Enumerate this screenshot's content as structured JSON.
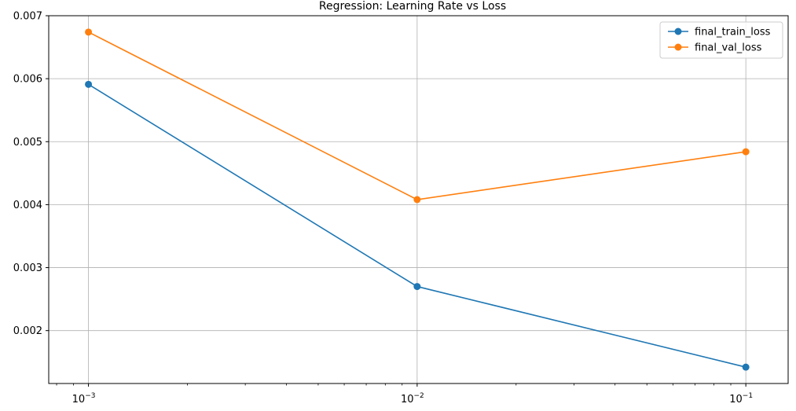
{
  "chart_data": {
    "type": "line",
    "title": "Regression: Learning Rate vs Loss",
    "xlabel": "",
    "ylabel": "",
    "xscale": "log",
    "x": [
      0.001,
      0.01,
      0.1
    ],
    "x_tick_labels": [
      {
        "value": 0.001,
        "base": "10",
        "exp": "−3"
      },
      {
        "value": 0.01,
        "base": "10",
        "exp": "−2"
      },
      {
        "value": 0.1,
        "base": "10",
        "exp": "−1"
      }
    ],
    "xlim": [
      0.000757,
      0.1345
    ],
    "ylim": [
      0.00116,
      0.007
    ],
    "y_ticks": [
      0.002,
      0.003,
      0.004,
      0.005,
      0.006,
      0.007
    ],
    "y_tick_labels": [
      "0.002",
      "0.003",
      "0.004",
      "0.005",
      "0.006",
      "0.007"
    ],
    "grid": true,
    "legend_position": "top-right",
    "series": [
      {
        "name": "final_train_loss",
        "color": "#1f77b4",
        "values": [
          0.00591,
          0.0027,
          0.00142
        ]
      },
      {
        "name": "final_val_loss",
        "color": "#ff7f0e",
        "values": [
          0.00674,
          0.00408,
          0.00484
        ]
      }
    ]
  }
}
